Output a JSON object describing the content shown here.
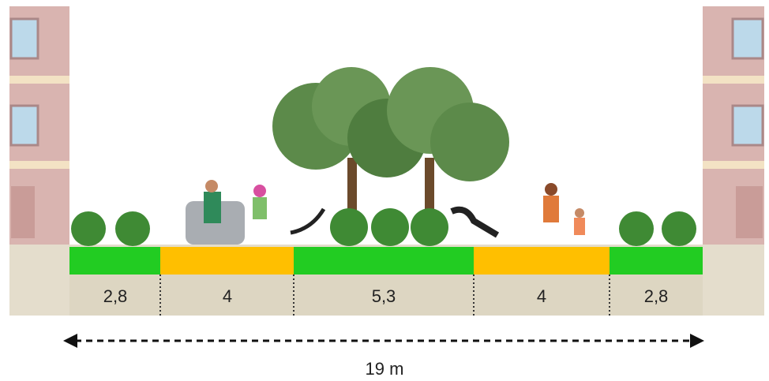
{
  "segments": [
    {
      "label": "2,8"
    },
    {
      "label": "4"
    },
    {
      "label": "5,3"
    },
    {
      "label": "4"
    },
    {
      "label": "2,8"
    }
  ],
  "total": "19 m"
}
